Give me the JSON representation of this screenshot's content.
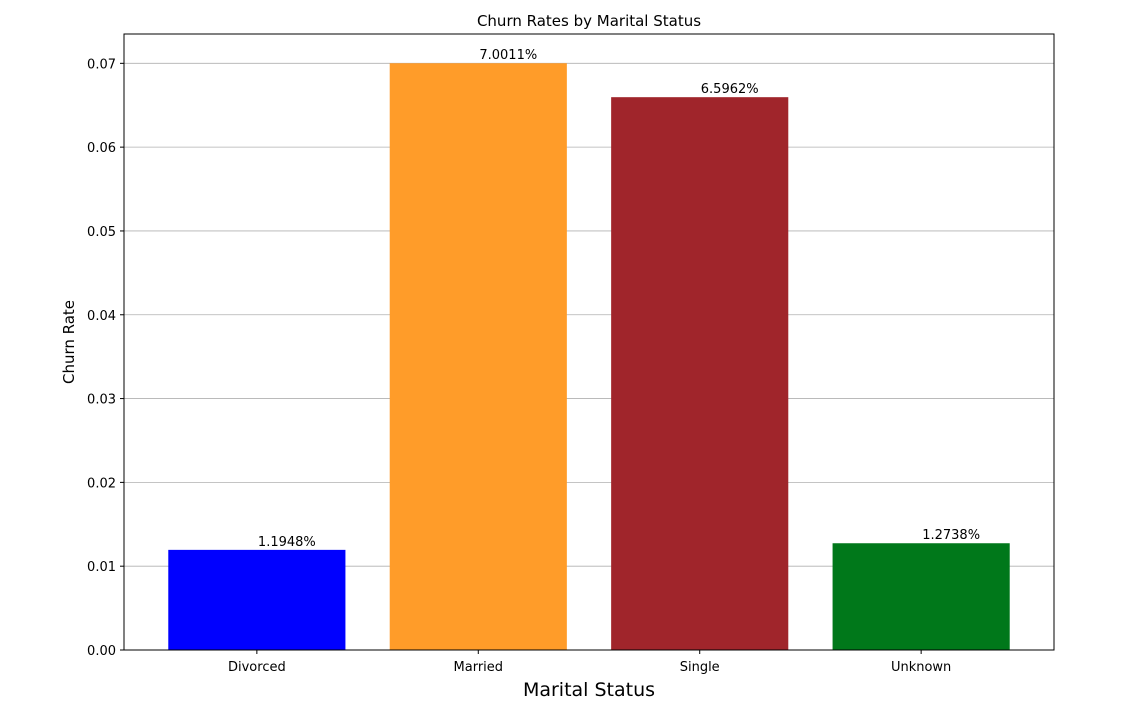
{
  "chart_data": {
    "type": "bar",
    "title": "Churn Rates by Marital Status",
    "xlabel": "Marital Status",
    "ylabel": "Churn Rate",
    "categories": [
      "Divorced",
      "Married",
      "Single",
      "Unknown"
    ],
    "values": [
      0.011948,
      0.070011,
      0.065962,
      0.012738
    ],
    "data_labels": [
      "1.1948%",
      "7.0011%",
      "6.5962%",
      "1.2738%"
    ],
    "colors": [
      "#0000ff",
      "#ff9c29",
      "#a0252b",
      "#00781a"
    ],
    "ylim": [
      0,
      0.0735
    ],
    "yticks": [
      0.0,
      0.01,
      0.02,
      0.03,
      0.04,
      0.05,
      0.06,
      0.07
    ],
    "ytick_labels": [
      "0.00",
      "0.01",
      "0.02",
      "0.03",
      "0.04",
      "0.05",
      "0.06",
      "0.07"
    ],
    "grid": "y-axis"
  }
}
